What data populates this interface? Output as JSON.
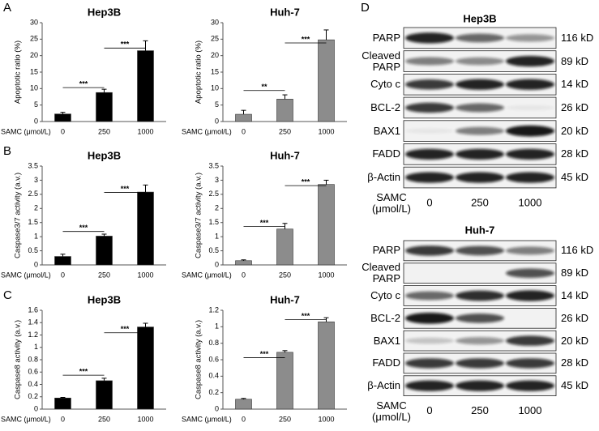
{
  "chart_data": [
    {
      "type": "bar",
      "panel": "A",
      "title": "Hep3B",
      "ylabel": "Apoptotic ratio (%)",
      "xlabel": "SAMC (μmol/L)",
      "categories": [
        "0",
        "250",
        "1000"
      ],
      "values": [
        2.3,
        8.8,
        21.5
      ],
      "errors": [
        0.5,
        1.0,
        3.0
      ],
      "color": "#000000",
      "ylim": [
        0,
        30
      ],
      "yticks": [
        0,
        5,
        10,
        15,
        20,
        25,
        30
      ],
      "annotations": [
        "***",
        "***"
      ]
    },
    {
      "type": "bar",
      "title": "Huh-7",
      "ylabel": "Apoptotic ratio (%)",
      "xlabel": "SAMC (μmol/L)",
      "categories": [
        "0",
        "250",
        "1000"
      ],
      "values": [
        2.2,
        6.8,
        24.8
      ],
      "errors": [
        1.2,
        1.3,
        3.0
      ],
      "color": "#8c8c8c",
      "ylim": [
        0,
        30
      ],
      "yticks": [
        0,
        5,
        10,
        15,
        20,
        25,
        30
      ],
      "annotations": [
        "**",
        "***"
      ]
    },
    {
      "type": "bar",
      "panel": "B",
      "title": "Hep3B",
      "ylabel": "Caspase3/7 activity (a.v.)",
      "xlabel": "SAMC (μmol/L)",
      "categories": [
        "0",
        "250",
        "1000"
      ],
      "values": [
        0.3,
        1.02,
        2.58
      ],
      "errors": [
        0.08,
        0.07,
        0.25
      ],
      "color": "#000000",
      "ylim": [
        0,
        3.5
      ],
      "yticks": [
        0,
        0.5,
        1,
        1.5,
        2,
        2.5,
        3,
        3.5
      ],
      "annotations": [
        "***",
        "***"
      ]
    },
    {
      "type": "bar",
      "title": "Huh-7",
      "ylabel": "Caspase3/7 activity (a.v.)",
      "xlabel": "SAMC (μmol/L)",
      "categories": [
        "0",
        "250",
        "1000"
      ],
      "values": [
        0.15,
        1.27,
        2.85
      ],
      "errors": [
        0.03,
        0.2,
        0.15
      ],
      "color": "#8c8c8c",
      "ylim": [
        0,
        3.5
      ],
      "yticks": [
        0,
        0.5,
        1,
        1.5,
        2,
        2.5,
        3,
        3.5
      ],
      "annotations": [
        "***",
        "***"
      ]
    },
    {
      "type": "bar",
      "panel": "C",
      "title": "Hep3B",
      "ylabel": "Caspase8 activity (a.v.)",
      "xlabel": "SAMC (μmol/L)",
      "categories": [
        "0",
        "250",
        "1000"
      ],
      "values": [
        0.18,
        0.46,
        1.33
      ],
      "errors": [
        0.01,
        0.04,
        0.06
      ],
      "color": "#000000",
      "ylim": [
        0,
        1.6
      ],
      "yticks": [
        0,
        0.2,
        0.4,
        0.6,
        0.8,
        1,
        1.2,
        1.4,
        1.6
      ],
      "annotations": [
        "***",
        "***"
      ]
    },
    {
      "type": "bar",
      "title": "Huh-7",
      "ylabel": "Caspase8 activity (a.v.)",
      "xlabel": "SAMC (μmol/L)",
      "categories": [
        "0",
        "250",
        "1000"
      ],
      "values": [
        0.12,
        0.69,
        1.06
      ],
      "errors": [
        0.01,
        0.02,
        0.05
      ],
      "color": "#8c8c8c",
      "ylim": [
        0,
        1.2
      ],
      "yticks": [
        0,
        0.2,
        0.4,
        0.6,
        0.8,
        1,
        1.2
      ],
      "annotations": [
        "***",
        "***"
      ]
    }
  ],
  "blot_panel": {
    "letter": "D",
    "blots": [
      {
        "title": "Hep3B",
        "rows": [
          {
            "label": "PARP",
            "size": "116 kD"
          },
          {
            "label": "Cleaved PARP",
            "size": "89 kD"
          },
          {
            "label": "Cyto c",
            "size": "14 kD"
          },
          {
            "label": "BCL-2",
            "size": "26 kD"
          },
          {
            "label": "BAX1",
            "size": "20 kD"
          },
          {
            "label": "FADD",
            "size": "28 kD"
          },
          {
            "label": "β-Actin",
            "size": "45 kD"
          }
        ],
        "xlabel": "SAMC (μmol/L)",
        "lanes": [
          "0",
          "250",
          "1000"
        ]
      },
      {
        "title": "Huh-7",
        "rows": [
          {
            "label": "PARP",
            "size": "116 kD"
          },
          {
            "label": "Cleaved PARP",
            "size": "89 kD"
          },
          {
            "label": "Cyto c",
            "size": "14 kD"
          },
          {
            "label": "BCL-2",
            "size": "26 kD"
          },
          {
            "label": "BAX1",
            "size": "20 kD"
          },
          {
            "label": "FADD",
            "size": "28 kD"
          },
          {
            "label": "β-Actin",
            "size": "45 kD"
          }
        ],
        "xlabel": "SAMC (μmol/L)",
        "lanes": [
          "0",
          "250",
          "1000"
        ]
      }
    ]
  }
}
